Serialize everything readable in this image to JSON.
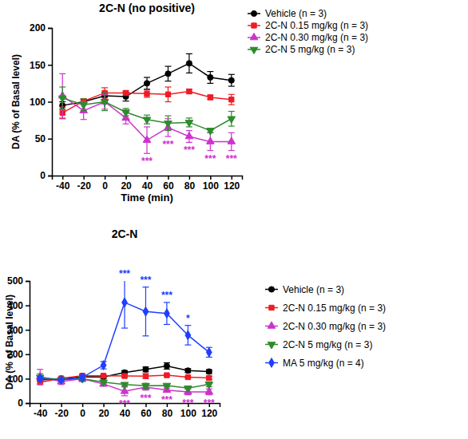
{
  "chart_data": [
    {
      "type": "line",
      "title": "2C-N (no positive)",
      "x_label": "Time (min)",
      "y_label": "DA (% of Basal level)",
      "x": [
        -40,
        -20,
        0,
        20,
        40,
        60,
        80,
        100,
        120
      ],
      "xlim": [
        -50,
        130
      ],
      "xticks": [
        -40,
        -20,
        0,
        20,
        40,
        60,
        80,
        100,
        120
      ],
      "ylim": [
        0,
        200
      ],
      "yticks": [
        0,
        50,
        100,
        150,
        200
      ],
      "legend": "upper right",
      "series": [
        {
          "name": "Vehicle (n = 3)",
          "color": "#000000",
          "marker": "circle",
          "values": [
            95,
            100,
            108,
            107,
            125,
            138,
            152,
            133,
            129
          ],
          "errors": [
            5,
            3,
            5,
            6,
            8,
            10,
            13,
            8,
            8
          ],
          "significance": [
            null,
            null,
            null,
            null,
            null,
            null,
            null,
            null,
            null
          ]
        },
        {
          "name": "2C-N 0.15 mg/kg (n = 3)",
          "color": "#ee1c24",
          "marker": "square",
          "values": [
            85,
            101,
            112,
            112,
            111,
            110,
            114,
            106,
            103
          ],
          "errors": [
            8,
            3,
            7,
            3,
            5,
            10,
            3,
            3,
            7
          ],
          "significance": [
            null,
            null,
            null,
            null,
            null,
            null,
            null,
            null,
            null
          ]
        },
        {
          "name": "2C-N 0.30 mg/kg (n = 3)",
          "color": "#cc33cc",
          "marker": "triangle-up",
          "values": [
            108,
            88,
            100,
            78,
            48,
            65,
            53,
            46,
            46
          ],
          "errors": [
            30,
            12,
            10,
            8,
            18,
            12,
            8,
            12,
            12
          ],
          "significance": [
            null,
            null,
            null,
            null,
            "***",
            "***",
            "***",
            "***",
            "***"
          ]
        },
        {
          "name": "2C-N 5 mg/kg (n = 3)",
          "color": "#2e8b2e",
          "marker": "triangle-down",
          "values": [
            105,
            96,
            100,
            86,
            76,
            71,
            72,
            61,
            77
          ],
          "errors": [
            15,
            8,
            12,
            5,
            6,
            10,
            6,
            3,
            10
          ],
          "significance": [
            null,
            null,
            null,
            null,
            null,
            null,
            null,
            null,
            null
          ]
        }
      ]
    },
    {
      "type": "line",
      "title": "2C-N",
      "y_label": "DA (% of Basal level)",
      "x": [
        -40,
        -20,
        0,
        20,
        40,
        60,
        80,
        100,
        120
      ],
      "xlim": [
        -50,
        130
      ],
      "xticks": [
        -40,
        -20,
        0,
        20,
        40,
        60,
        80,
        100,
        120
      ],
      "ylim": [
        0,
        500
      ],
      "yticks": [
        0,
        100,
        200,
        300,
        400,
        500
      ],
      "legend": "center right",
      "series": [
        {
          "name": "Vehicle (n = 3)",
          "color": "#000000",
          "marker": "circle",
          "values": [
            95,
            100,
            108,
            107,
            125,
            138,
            152,
            133,
            129
          ],
          "errors": [
            5,
            3,
            5,
            6,
            8,
            10,
            13,
            8,
            8
          ],
          "significance": [
            null,
            null,
            null,
            null,
            null,
            null,
            null,
            null,
            null
          ]
        },
        {
          "name": "2C-N 0.15 mg/kg (n = 3)",
          "color": "#ee1c24",
          "marker": "square",
          "values": [
            85,
            101,
            112,
            112,
            111,
            110,
            114,
            106,
            103
          ],
          "errors": [
            8,
            3,
            7,
            3,
            5,
            10,
            3,
            3,
            7
          ],
          "significance": [
            null,
            null,
            null,
            null,
            null,
            null,
            null,
            null,
            null
          ]
        },
        {
          "name": "2C-N 0.30 mg/kg (n = 3)",
          "color": "#cc33cc",
          "marker": "triangle-up",
          "values": [
            108,
            88,
            100,
            78,
            48,
            65,
            53,
            46,
            46
          ],
          "errors": [
            30,
            12,
            10,
            8,
            18,
            12,
            8,
            12,
            12
          ],
          "significance": [
            null,
            null,
            null,
            null,
            "***",
            "***",
            "***",
            "***",
            "***"
          ]
        },
        {
          "name": "2C-N 5 mg/kg (n = 3)",
          "color": "#2e8b2e",
          "marker": "triangle-down",
          "values": [
            105,
            96,
            100,
            86,
            76,
            71,
            72,
            61,
            77
          ],
          "errors": [
            15,
            8,
            12,
            5,
            6,
            10,
            6,
            3,
            10
          ],
          "significance": [
            null,
            null,
            null,
            null,
            null,
            null,
            null,
            null,
            null
          ]
        },
        {
          "name": "MA 5 mg/kg (n = 4)",
          "color": "#1f3fff",
          "marker": "diamond",
          "values": [
            100,
            95,
            105,
            155,
            412,
            375,
            367,
            278,
            208
          ],
          "errors": [
            10,
            5,
            10,
            15,
            105,
            100,
            45,
            40,
            20
          ],
          "significance": [
            null,
            null,
            null,
            null,
            "***",
            "***",
            "***",
            "*",
            null
          ]
        }
      ]
    }
  ]
}
